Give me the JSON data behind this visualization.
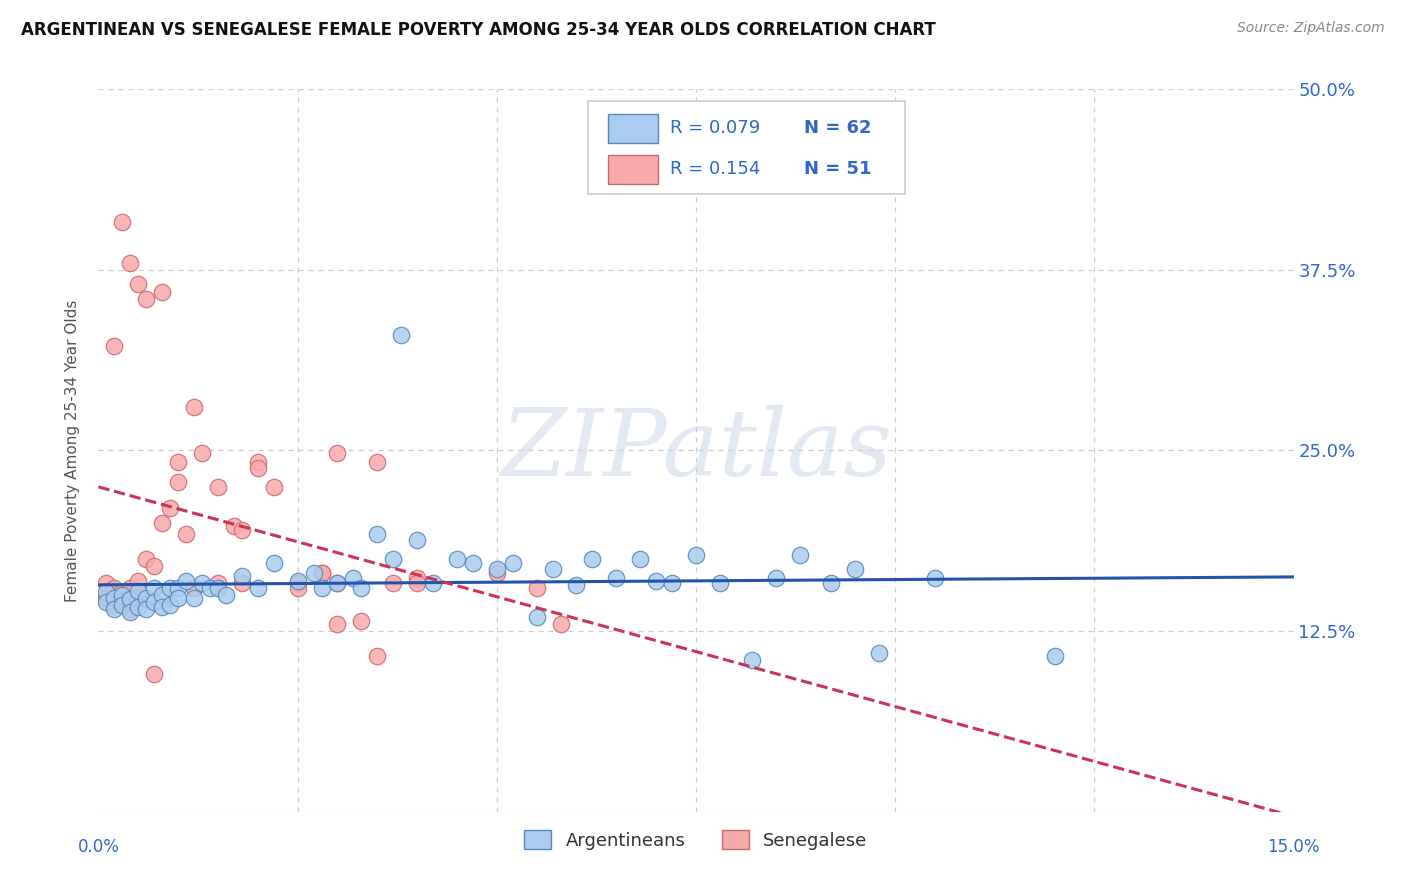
{
  "title": "ARGENTINEAN VS SENEGALESE FEMALE POVERTY AMONG 25-34 YEAR OLDS CORRELATION CHART",
  "source": "Source: ZipAtlas.com",
  "ylabel": "Female Poverty Among 25-34 Year Olds",
  "xlim": [
    0.0,
    0.15
  ],
  "ylim": [
    0.0,
    0.5
  ],
  "xtick_vals": [
    0.0,
    0.025,
    0.05,
    0.075,
    0.1,
    0.125,
    0.15
  ],
  "ytick_vals": [
    0.0,
    0.125,
    0.25,
    0.375,
    0.5
  ],
  "ytick_labels": [
    "",
    "12.5%",
    "25.0%",
    "37.5%",
    "50.0%"
  ],
  "legend_r1": "R = 0.079",
  "legend_n1": "N = 62",
  "legend_r2": "R = 0.154",
  "legend_n2": "N = 51",
  "blue_scatter_face": "#aaccee",
  "blue_scatter_edge": "#5588bb",
  "pink_scatter_face": "#f8aaaa",
  "pink_scatter_edge": "#cc6677",
  "blue_line_color": "#2255aa",
  "pink_line_color": "#cc3355",
  "legend_text_color": "#3366cc",
  "watermark_text": "ZIPatlas",
  "watermark_color": "#ccd8ea",
  "grid_color": "#cccccc",
  "title_color": "#111111",
  "source_color": "#888888",
  "ylabel_color": "#555555",
  "tick_label_color": "#3366cc",
  "arg_x": [
    0.001,
    0.001,
    0.002,
    0.002,
    0.003,
    0.003,
    0.004,
    0.004,
    0.005,
    0.005,
    0.006,
    0.006,
    0.007,
    0.007,
    0.008,
    0.008,
    0.009,
    0.009,
    0.01,
    0.01,
    0.011,
    0.012,
    0.013,
    0.014,
    0.015,
    0.016,
    0.018,
    0.02,
    0.022,
    0.025,
    0.027,
    0.028,
    0.03,
    0.032,
    0.033,
    0.035,
    0.037,
    0.04,
    0.042,
    0.045,
    0.047,
    0.05,
    0.052,
    0.055,
    0.057,
    0.06,
    0.062,
    0.065,
    0.068,
    0.07,
    0.072,
    0.075,
    0.078,
    0.082,
    0.085,
    0.088,
    0.092,
    0.095,
    0.098,
    0.105,
    0.038,
    0.12
  ],
  "arg_y": [
    0.152,
    0.145,
    0.148,
    0.14,
    0.15,
    0.143,
    0.147,
    0.138,
    0.153,
    0.142,
    0.148,
    0.14,
    0.155,
    0.145,
    0.15,
    0.142,
    0.155,
    0.143,
    0.155,
    0.148,
    0.16,
    0.148,
    0.158,
    0.155,
    0.155,
    0.15,
    0.163,
    0.155,
    0.172,
    0.16,
    0.165,
    0.155,
    0.158,
    0.162,
    0.155,
    0.192,
    0.175,
    0.188,
    0.158,
    0.175,
    0.172,
    0.168,
    0.172,
    0.135,
    0.168,
    0.157,
    0.175,
    0.162,
    0.175,
    0.16,
    0.158,
    0.178,
    0.158,
    0.105,
    0.162,
    0.178,
    0.158,
    0.168,
    0.11,
    0.162,
    0.33,
    0.108
  ],
  "sen_x": [
    0.001,
    0.001,
    0.002,
    0.002,
    0.003,
    0.003,
    0.004,
    0.004,
    0.005,
    0.005,
    0.006,
    0.007,
    0.008,
    0.009,
    0.01,
    0.011,
    0.012,
    0.013,
    0.015,
    0.017,
    0.018,
    0.02,
    0.022,
    0.025,
    0.028,
    0.03,
    0.033,
    0.035,
    0.037,
    0.04,
    0.03,
    0.035,
    0.04,
    0.05,
    0.055,
    0.058,
    0.008,
    0.01,
    0.012,
    0.015,
    0.018,
    0.02,
    0.025,
    0.028,
    0.03,
    0.003,
    0.004,
    0.005,
    0.006,
    0.002,
    0.007
  ],
  "sen_y": [
    0.158,
    0.148,
    0.155,
    0.143,
    0.152,
    0.145,
    0.155,
    0.14,
    0.16,
    0.148,
    0.175,
    0.17,
    0.2,
    0.21,
    0.228,
    0.192,
    0.155,
    0.248,
    0.158,
    0.198,
    0.158,
    0.242,
    0.225,
    0.158,
    0.165,
    0.158,
    0.132,
    0.108,
    0.158,
    0.162,
    0.248,
    0.242,
    0.158,
    0.165,
    0.155,
    0.13,
    0.36,
    0.242,
    0.28,
    0.225,
    0.195,
    0.238,
    0.155,
    0.165,
    0.13,
    0.408,
    0.38,
    0.365,
    0.355,
    0.322,
    0.095
  ]
}
